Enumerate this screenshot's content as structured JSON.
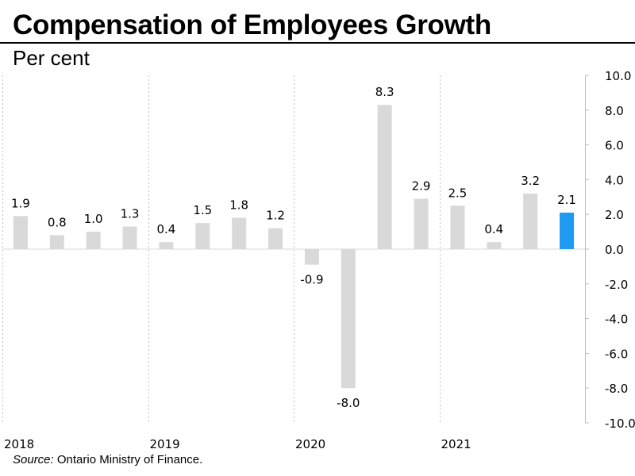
{
  "title": "Compensation of Employees Growth",
  "subtitle": "Per cent",
  "source": {
    "label": "Source:",
    "text": " Ontario Ministry of Finance."
  },
  "colors": {
    "bar": "#d9d9d9",
    "highlight": "#1e9bf0",
    "grid": "#bfbfbf",
    "zero_line": "#d9d9d9"
  },
  "chart_data": {
    "type": "bar",
    "title": "Compensation of Employees Growth",
    "ylabel": "Per cent",
    "ylim": [
      -10,
      10
    ],
    "y_ticks": [
      "10.0",
      "8.0",
      "6.0",
      "4.0",
      "2.0",
      "0.0",
      "-2.0",
      "-4.0",
      "-6.0",
      "-8.0",
      "-10.0"
    ],
    "y_axis_position": "right",
    "grid": "vertical dotted lines between years",
    "year_labels": [
      "2018",
      "2019",
      "2020",
      "2021"
    ],
    "quarters_per_year": 4,
    "values": [
      1.9,
      0.8,
      1.0,
      1.3,
      0.4,
      1.5,
      1.8,
      1.2,
      -0.9,
      -8.0,
      8.3,
      2.9,
      2.5,
      0.4,
      3.2,
      2.1
    ],
    "data_labels": [
      "1.9",
      "0.8",
      "1.0",
      "1.3",
      "0.4",
      "1.5",
      "1.8",
      "1.2",
      "-0.9",
      "-8.0",
      "8.3",
      "2.9",
      "2.5",
      "0.4",
      "3.2",
      "2.1"
    ],
    "highlight_index": 15
  }
}
